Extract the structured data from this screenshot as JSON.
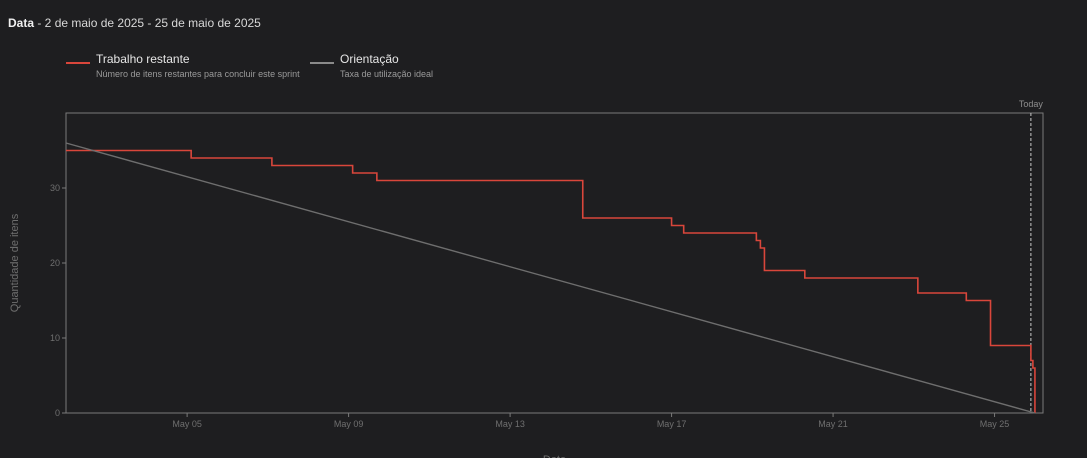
{
  "header": {
    "label": "Data",
    "range": " - 2 de maio de 2025 - 25 de maio de 2025"
  },
  "legend": [
    {
      "title": "Trabalho restante",
      "description": "Número de itens restantes para concluir este sprint",
      "color": "#d9463b"
    },
    {
      "title": "Orientação",
      "description": "Taxa de utilização ideal",
      "color": "#8a8a8a"
    }
  ],
  "chart_data": {
    "type": "line",
    "xlabel": "Date",
    "ylabel": "Quantidade de itens",
    "xlim": [
      2.0,
      26.2
    ],
    "ylim": [
      0,
      40
    ],
    "x_ticks": [
      {
        "day": 5,
        "label": "May 05"
      },
      {
        "day": 9,
        "label": "May 09"
      },
      {
        "day": 13,
        "label": "May 13"
      },
      {
        "day": 17,
        "label": "May 17"
      },
      {
        "day": 21,
        "label": "May 21"
      },
      {
        "day": 25,
        "label": "May 25"
      }
    ],
    "y_ticks": [
      0,
      10,
      20,
      30
    ],
    "today": {
      "day": 25.9,
      "label": "Today"
    },
    "series": [
      {
        "name": "Trabalho restante",
        "color": "#d9463b",
        "step": true,
        "points": [
          [
            2.0,
            35
          ],
          [
            5.1,
            34
          ],
          [
            7.1,
            33
          ],
          [
            9.1,
            32
          ],
          [
            9.7,
            31
          ],
          [
            14.8,
            26
          ],
          [
            17.0,
            25
          ],
          [
            17.3,
            24
          ],
          [
            19.1,
            23
          ],
          [
            19.2,
            22
          ],
          [
            19.3,
            19
          ],
          [
            20.3,
            18
          ],
          [
            23.1,
            16
          ],
          [
            24.3,
            15
          ],
          [
            24.9,
            9
          ],
          [
            25.9,
            7
          ],
          [
            25.95,
            6
          ],
          [
            26.0,
            0
          ]
        ]
      },
      {
        "name": "Orientação",
        "color": "#6e6e6e",
        "step": false,
        "points": [
          [
            2.0,
            36
          ],
          [
            26.0,
            0
          ]
        ]
      }
    ]
  }
}
